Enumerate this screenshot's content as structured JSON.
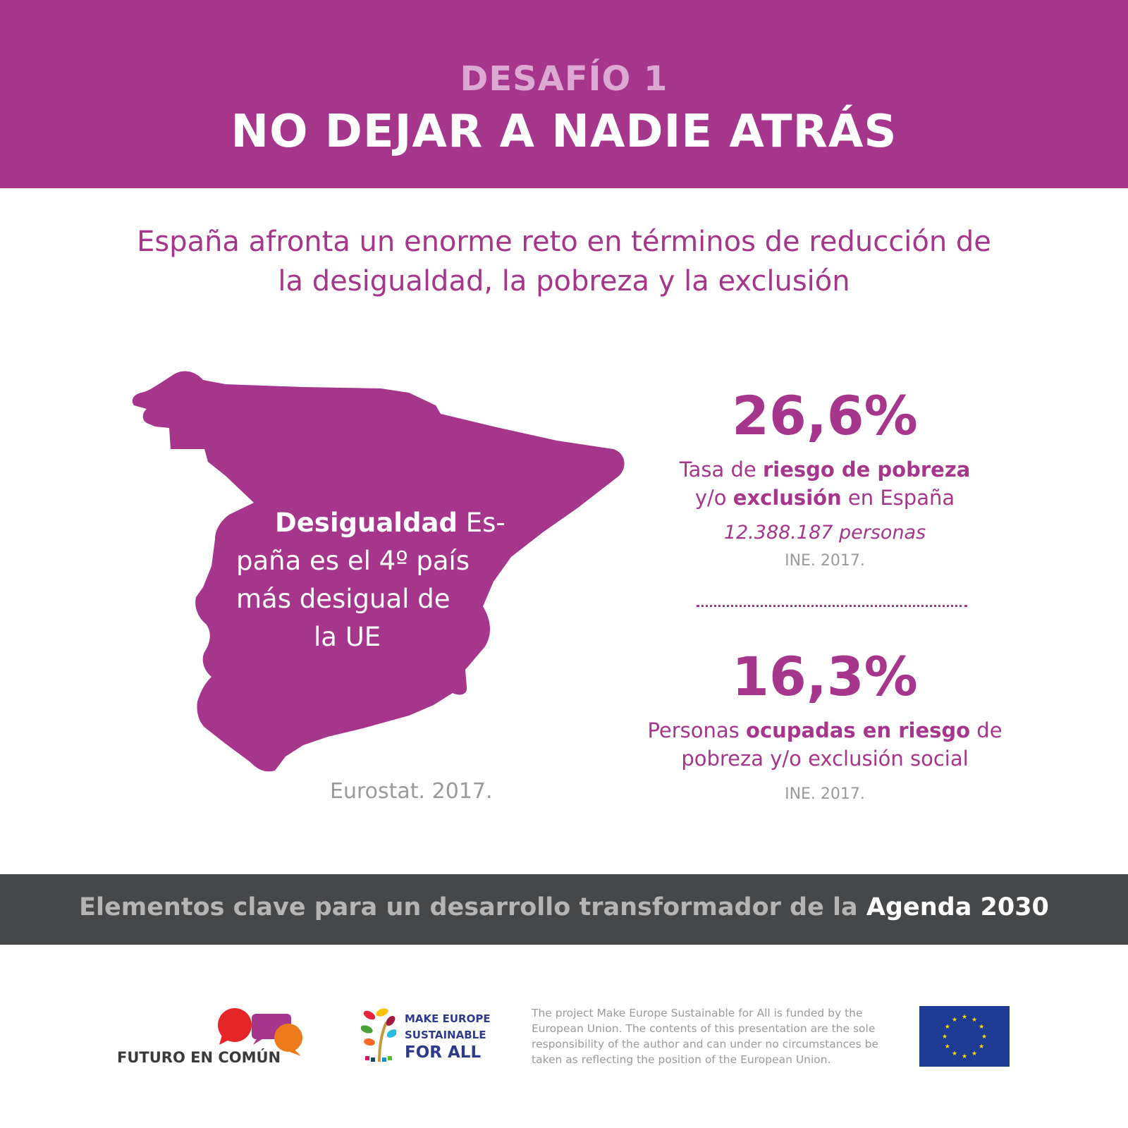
{
  "header": {
    "kicker": "DESAFÍO 1",
    "title": "NO DEJAR A NADIE ATRÁS",
    "background_color": "#a6358c"
  },
  "intro": {
    "line1": "España afronta un enorme reto en términos de reducción de",
    "line2": "la desigualdad, la pobreza y la exclusión"
  },
  "map": {
    "shape": "spain-map",
    "fill_color": "#a6358c",
    "lead": "Desigualdad",
    "line1_rest": " Es-",
    "line2": "paña es el 4º país",
    "line3": "más desigual de",
    "line4": "la UE",
    "source": "Eurostat. 2017."
  },
  "stats": [
    {
      "value": "26,6%",
      "desc_line1_pre": "Tasa de ",
      "desc_line1_bold": "riesgo de pobreza",
      "desc_line2_pre": "y/o ",
      "desc_line2_bold": "exclusión",
      "desc_line2_post": " en España",
      "people": "12.388.187 personas",
      "source": "INE. 2017."
    },
    {
      "value": "16,3%",
      "desc_line1_pre": "Personas ",
      "desc_line1_bold": "ocupadas en riesgo",
      "desc_line1_post": " de",
      "desc_line2": "pobreza y/o exclusión social",
      "source": "INE. 2017."
    }
  ],
  "band": {
    "text": "Elementos clave para un desarrollo transformador de la ",
    "highlight": "Agenda 2030",
    "background_color": "#464749"
  },
  "footer": {
    "futuro_logo_text": "FUTURO EN COMÚN",
    "make_europe_line1": "MAKE EUROPE",
    "make_europe_line2": "SUSTAINABLE",
    "make_europe_line3": "FOR ALL",
    "disclaimer_line1": "The project Make Europe Sustainable for All is funded by the",
    "disclaimer_line2": "European Union. The contents of this presentation are the sole",
    "disclaimer_line3": "responsibility of the author and can under no circumstances be",
    "disclaimer_line4": "taken as reflecting the position of the European Union.",
    "eu_flag_color": "#1f3a93",
    "eu_star_color": "#ffdd00"
  }
}
